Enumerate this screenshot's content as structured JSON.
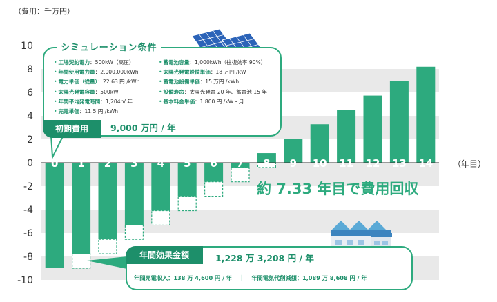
{
  "chart_data": {
    "type": "bar",
    "ylabel": "（費用：千万円）",
    "xlabel": "（年目）",
    "categories": [
      "0",
      "1",
      "2",
      "3",
      "4",
      "5",
      "6",
      "7",
      "8",
      "9",
      "10",
      "11",
      "12",
      "13",
      "14"
    ],
    "values": [
      -9.0,
      -7.77,
      -6.54,
      -5.32,
      -4.09,
      -2.86,
      -1.63,
      -0.41,
      0.82,
      2.05,
      3.28,
      4.5,
      5.73,
      6.96,
      8.19
    ],
    "ylim": [
      -10,
      10
    ],
    "yticks": [
      10,
      8,
      6,
      4,
      2,
      0,
      -2,
      -4,
      -6,
      -8,
      -10
    ],
    "grid": true,
    "annotation": "約 7.33 年目で費用回収"
  },
  "colors": {
    "bar": "#2daa7e",
    "accent": "#1d8f6a",
    "grid_band": "#e9e9e9"
  },
  "conditions": {
    "title": "シミュレーション条件",
    "left": [
      {
        "key": "工場契約電力",
        "value": "500kW（高圧）"
      },
      {
        "key": "年間使用電力量",
        "value": "2,000,000kWh"
      },
      {
        "key": "電力単価（従量）",
        "value": "22.63 円 /kWh"
      },
      {
        "key": "太陽光発電容量",
        "value": "500kW"
      },
      {
        "key": "年間平均発電時間",
        "value": "1,204h/ 年"
      },
      {
        "key": "売電単価",
        "value": "11.5 円 /kWh"
      }
    ],
    "right": [
      {
        "key": "蓄電池容量",
        "value": "1,000kWh（往復効率 90%）"
      },
      {
        "key": "太陽光発電設備単価",
        "value": "18 万円 /kW"
      },
      {
        "key": "蓄電池設備単価",
        "value": "15 万円 /kWh"
      },
      {
        "key": "設備寿命",
        "value": "太陽光発電 20 年、蓄電池 15 年"
      },
      {
        "key": "基本料金単価",
        "value": "1,800 円 /kW・月"
      }
    ]
  },
  "initial_cost": {
    "label": "初期費用",
    "value": "9,000 万円 / 年"
  },
  "annual_effect": {
    "label": "年間効果金額",
    "value": "1,228 万 3,208 円 / 年",
    "sales_income": "年間売電収入：138 万 4,600 円 / 年",
    "separator": "｜",
    "savings": "年間電気代削減額：1,089 万 8,608 円 / 年"
  }
}
